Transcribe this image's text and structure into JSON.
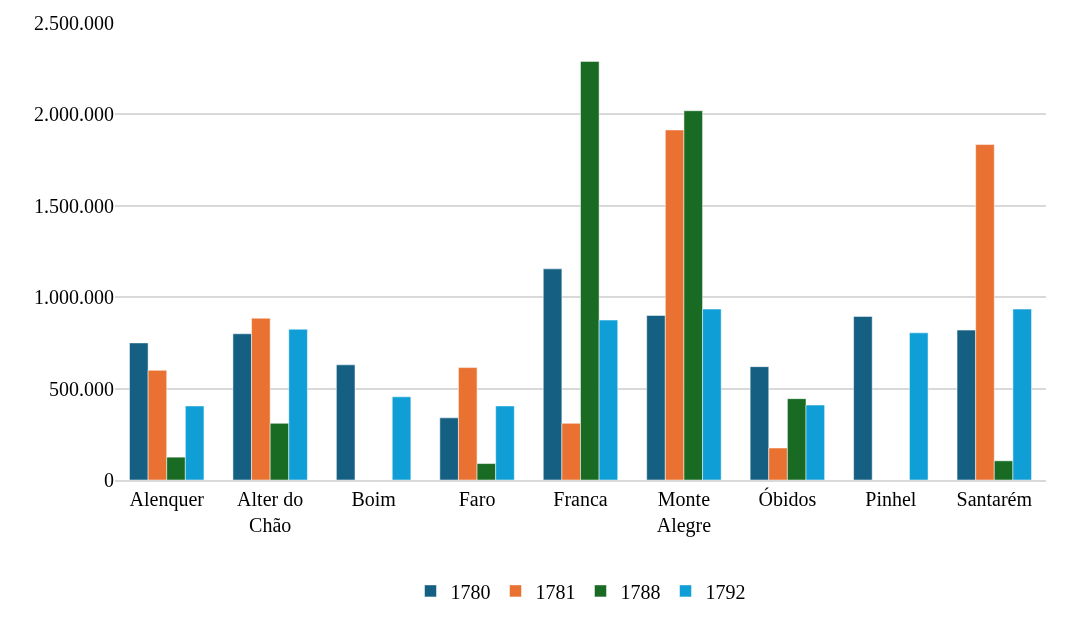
{
  "chart_data": {
    "type": "bar",
    "categories": [
      "Alenquer",
      "Alter do Chão",
      "Boim",
      "Faro",
      "Franca",
      "Monte Alegre",
      "Óbidos",
      "Pinhel",
      "Santarém"
    ],
    "series": [
      {
        "name": "1780",
        "color": "#156082",
        "values": [
          750000,
          800000,
          630000,
          340000,
          1155000,
          900000,
          620000,
          895000,
          820000
        ]
      },
      {
        "name": "1781",
        "color": "#e97132",
        "values": [
          600000,
          885000,
          null,
          615000,
          310000,
          1915000,
          175000,
          null,
          1835000
        ]
      },
      {
        "name": "1788",
        "color": "#196b24",
        "values": [
          125000,
          310000,
          null,
          90000,
          2290000,
          2020000,
          445000,
          null,
          105000
        ]
      },
      {
        "name": "1792",
        "color": "#0f9ed5",
        "values": [
          405000,
          825000,
          455000,
          405000,
          875000,
          935000,
          410000,
          805000,
          935000
        ]
      }
    ],
    "ylim": [
      0,
      2500000
    ],
    "yticks": [
      {
        "value": 0,
        "label": "0"
      },
      {
        "value": 500000,
        "label": "500.000"
      },
      {
        "value": 1000000,
        "label": "1.000.000"
      },
      {
        "value": 1500000,
        "label": "1.500.000"
      },
      {
        "value": 2000000,
        "label": "2.000.000"
      },
      {
        "value": 2500000,
        "label": "2.500.000"
      }
    ],
    "grid": "y",
    "legend": "bottom"
  }
}
